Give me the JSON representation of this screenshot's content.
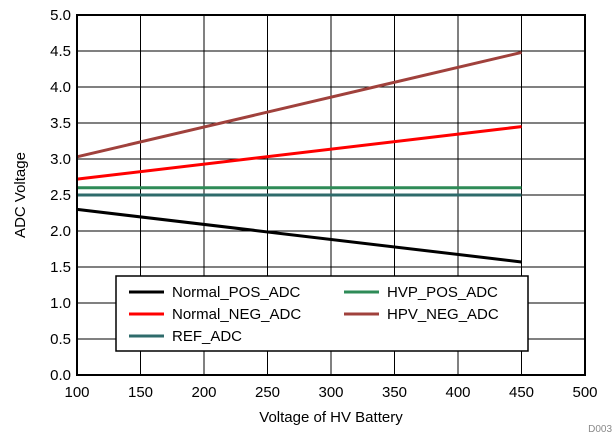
{
  "chart_data": {
    "type": "line",
    "title": "",
    "xlabel": "Voltage of HV Battery",
    "ylabel": "ADC Voltage",
    "xlim": [
      100,
      500
    ],
    "ylim": [
      0.0,
      5.0
    ],
    "x_ticks": [
      "100",
      "150",
      "200",
      "250",
      "300",
      "350",
      "400",
      "450",
      "500"
    ],
    "y_ticks": [
      "0.0",
      "0.5",
      "1.0",
      "1.5",
      "2.0",
      "2.5",
      "3.0",
      "3.5",
      "4.0",
      "4.5",
      "5.0"
    ],
    "grid": true,
    "legend_position": "bottom-right",
    "series": [
      {
        "name": "Normal_POS_ADC",
        "color": "#000000",
        "x": [
          100,
          450
        ],
        "y": [
          2.3,
          1.57
        ]
      },
      {
        "name": "Normal_NEG_ADC",
        "color": "#ff0000",
        "x": [
          100,
          450
        ],
        "y": [
          2.72,
          3.45
        ]
      },
      {
        "name": "REF_ADC",
        "color": "#2e6b6b",
        "x": [
          100,
          450
        ],
        "y": [
          2.5,
          2.5
        ]
      },
      {
        "name": "HVP_POS_ADC",
        "color": "#2e8b57",
        "x": [
          100,
          450
        ],
        "y": [
          2.6,
          2.6
        ]
      },
      {
        "name": "HPV_NEG_ADC",
        "color": "#a0413c",
        "x": [
          100,
          450
        ],
        "y": [
          3.03,
          4.48
        ]
      }
    ],
    "figure_id": "D003"
  }
}
